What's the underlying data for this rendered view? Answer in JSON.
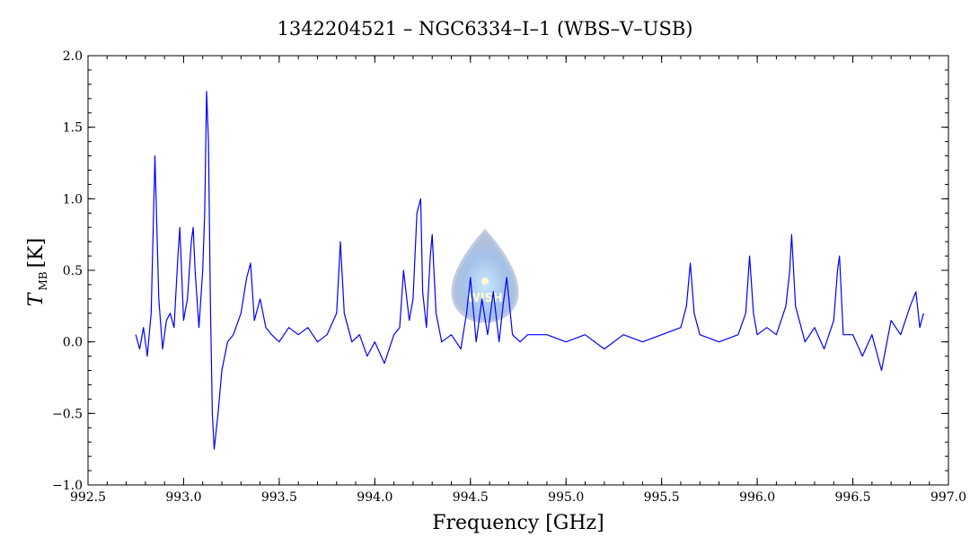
{
  "chart_data": {
    "type": "line",
    "title": "1342204521 – NGC6334–I–1 (WBS–V–USB)",
    "xlabel": "Frequency [GHz]",
    "ylabel_main": "T",
    "ylabel_sub": "MB",
    "ylabel_unit": "[K]",
    "xlim": [
      992.5,
      997.0
    ],
    "ylim": [
      -1.0,
      2.0
    ],
    "xticks": [
      "992.5",
      "993.0",
      "993.5",
      "994.0",
      "994.5",
      "995.0",
      "995.5",
      "996.0",
      "996.5",
      "997.0"
    ],
    "xtick_values": [
      992.5,
      993.0,
      993.5,
      994.0,
      994.5,
      995.0,
      995.5,
      996.0,
      996.5,
      997.0
    ],
    "yticks": [
      "−1.0",
      "−0.5",
      "0.0",
      "0.5",
      "1.0",
      "1.5",
      "2.0"
    ],
    "ytick_values": [
      -1.0,
      -0.5,
      0.0,
      0.5,
      1.0,
      1.5,
      2.0
    ],
    "series_color": "#0000ff",
    "grid": false,
    "watermark_text": "WISH",
    "series": [
      {
        "x": [
          992.75,
          992.77,
          992.79,
          992.81,
          992.83,
          992.84,
          992.85,
          992.87,
          992.89,
          992.91,
          992.93,
          992.95,
          992.97,
          992.98,
          993.0,
          993.02,
          993.04,
          993.05,
          993.06,
          993.08,
          993.1,
          993.11,
          993.12,
          993.13,
          993.14,
          993.15,
          993.16,
          993.18,
          993.2,
          993.23,
          993.26,
          993.3,
          993.33,
          993.35,
          993.37,
          993.4,
          993.43,
          993.46,
          993.5,
          993.55,
          993.6,
          993.65,
          993.7,
          993.75,
          993.8,
          993.82,
          993.84,
          993.88,
          993.92,
          993.96,
          994.0,
          994.05,
          994.1,
          994.13,
          994.15,
          994.18,
          994.2,
          994.22,
          994.24,
          994.25,
          994.27,
          994.29,
          994.3,
          994.32,
          994.35,
          994.4,
          994.45,
          994.48,
          994.5,
          994.53,
          994.56,
          994.59,
          994.62,
          994.65,
          994.67,
          994.69,
          994.72,
          994.76,
          994.8,
          994.9,
          995.0,
          995.1,
          995.2,
          995.3,
          995.4,
          995.5,
          995.6,
          995.63,
          995.65,
          995.67,
          995.7,
          995.8,
          995.9,
          995.94,
          995.96,
          995.98,
          996.0,
          996.05,
          996.1,
          996.15,
          996.17,
          996.18,
          996.2,
          996.25,
          996.3,
          996.35,
          996.4,
          996.42,
          996.43,
          996.45,
          996.5,
          996.55,
          996.6,
          996.65,
          996.7,
          996.75,
          996.8,
          996.83,
          996.85,
          996.87
        ],
        "y": [
          0.05,
          -0.05,
          0.1,
          -0.1,
          0.2,
          0.75,
          1.3,
          0.3,
          -0.05,
          0.15,
          0.2,
          0.1,
          0.6,
          0.8,
          0.15,
          0.3,
          0.7,
          0.8,
          0.5,
          0.1,
          0.5,
          0.9,
          1.75,
          1.4,
          0.3,
          -0.5,
          -0.75,
          -0.5,
          -0.2,
          0.0,
          0.05,
          0.2,
          0.45,
          0.55,
          0.15,
          0.3,
          0.1,
          0.05,
          0.0,
          0.1,
          0.05,
          0.1,
          0.0,
          0.05,
          0.2,
          0.7,
          0.2,
          0.0,
          0.05,
          -0.1,
          0.0,
          -0.15,
          0.05,
          0.1,
          0.5,
          0.15,
          0.3,
          0.9,
          1.0,
          0.35,
          0.1,
          0.6,
          0.75,
          0.2,
          0.0,
          0.05,
          -0.05,
          0.2,
          0.45,
          0.0,
          0.3,
          0.05,
          0.35,
          0.0,
          0.25,
          0.45,
          0.05,
          0.0,
          0.05,
          0.05,
          0.0,
          0.05,
          -0.05,
          0.05,
          0.0,
          0.05,
          0.1,
          0.25,
          0.55,
          0.2,
          0.05,
          0.0,
          0.05,
          0.2,
          0.6,
          0.2,
          0.05,
          0.1,
          0.05,
          0.25,
          0.5,
          0.75,
          0.25,
          0.0,
          0.1,
          -0.05,
          0.15,
          0.5,
          0.6,
          0.05,
          0.05,
          -0.1,
          0.05,
          -0.2,
          0.15,
          0.05,
          0.25,
          0.35,
          0.1,
          0.2
        ]
      }
    ]
  }
}
